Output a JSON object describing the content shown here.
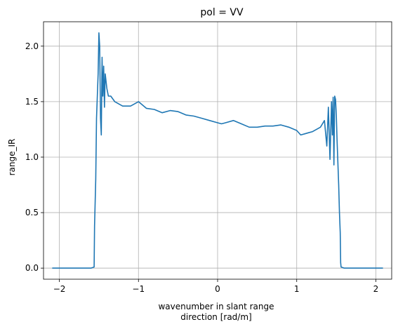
{
  "chart_data": {
    "type": "line",
    "title": "pol = VV",
    "xlabel_line1": "wavenumber in slant range",
    "xlabel_line2": "direction [rad/m]",
    "ylabel": "range_IR",
    "xlim": [
      -2.2,
      2.2
    ],
    "ylim": [
      -0.1,
      2.22
    ],
    "xticks": [
      -2,
      -1,
      0,
      1,
      2
    ],
    "xtick_labels": [
      "−2",
      "−1",
      "0",
      "1",
      "2"
    ],
    "yticks": [
      0.0,
      0.5,
      1.0,
      1.5,
      2.0
    ],
    "ytick_labels": [
      "0.0",
      "0.5",
      "1.0",
      "1.5",
      "2.0"
    ],
    "grid": true,
    "colors": {
      "series": "#1f77b4",
      "grid": "#b0b0b0"
    },
    "series": [
      {
        "x": [
          -2.09,
          -1.6,
          -1.56,
          -1.555,
          -1.54,
          -1.53,
          -1.51,
          -1.5,
          -1.49,
          -1.48,
          -1.47,
          -1.46,
          -1.45,
          -1.44,
          -1.43,
          -1.42,
          -1.4,
          -1.38,
          -1.35,
          -1.3,
          -1.25,
          -1.2,
          -1.1,
          -1.0,
          -0.9,
          -0.8,
          -0.7,
          -0.6,
          -0.5,
          -0.4,
          -0.3,
          -0.2,
          -0.1,
          0.0,
          0.05,
          0.1,
          0.2,
          0.3,
          0.4,
          0.5,
          0.6,
          0.7,
          0.8,
          0.9,
          1.0,
          1.05,
          1.1,
          1.15,
          1.2,
          1.25,
          1.3,
          1.35,
          1.38,
          1.4,
          1.42,
          1.44,
          1.45,
          1.46,
          1.47,
          1.48,
          1.49,
          1.5,
          1.51,
          1.53,
          1.54,
          1.55,
          1.555,
          1.56,
          1.6,
          2.09
        ],
        "y": [
          0.0,
          0.0,
          0.01,
          0.38,
          0.8,
          1.35,
          1.75,
          2.12,
          2.0,
          1.35,
          1.2,
          1.9,
          1.55,
          1.82,
          1.45,
          1.75,
          1.62,
          1.55,
          1.55,
          1.5,
          1.48,
          1.46,
          1.46,
          1.5,
          1.44,
          1.43,
          1.4,
          1.42,
          1.41,
          1.38,
          1.37,
          1.35,
          1.33,
          1.31,
          1.3,
          1.31,
          1.33,
          1.3,
          1.27,
          1.27,
          1.28,
          1.28,
          1.29,
          1.27,
          1.24,
          1.2,
          1.21,
          1.22,
          1.23,
          1.25,
          1.27,
          1.33,
          1.1,
          1.45,
          0.98,
          1.5,
          1.2,
          1.54,
          0.93,
          1.55,
          1.52,
          1.38,
          1.15,
          0.75,
          0.5,
          0.32,
          0.05,
          0.01,
          0.0,
          0.0
        ]
      }
    ]
  }
}
